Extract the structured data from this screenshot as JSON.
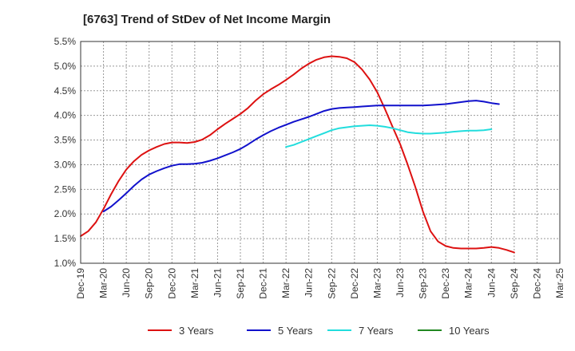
{
  "chart_data": {
    "type": "line",
    "title": "[6763]  Trend of StDev of Net Income Margin",
    "xlabel": "",
    "ylabel": "",
    "y_unit": "%",
    "ylim": [
      1.0,
      5.5
    ],
    "y_ticks": [
      "1.0%",
      "1.5%",
      "2.0%",
      "2.5%",
      "3.0%",
      "3.5%",
      "4.0%",
      "4.5%",
      "5.0%",
      "5.5%"
    ],
    "x_ticks": [
      "Dec-19",
      "Mar-20",
      "Jun-20",
      "Sep-20",
      "Dec-20",
      "Mar-21",
      "Jun-21",
      "Sep-21",
      "Dec-21",
      "Mar-22",
      "Jun-22",
      "Sep-22",
      "Dec-22",
      "Mar-23",
      "Jun-23",
      "Sep-23",
      "Dec-23",
      "Mar-24",
      "Jun-24",
      "Sep-24",
      "Dec-24",
      "Mar-25"
    ],
    "grid": true,
    "legend_position": "bottom",
    "series": [
      {
        "name": "3 Years",
        "color": "#dd1111",
        "start": "Dec-19",
        "values": [
          1.55,
          1.65,
          1.83,
          2.1,
          2.4,
          2.67,
          2.9,
          3.07,
          3.2,
          3.29,
          3.36,
          3.42,
          3.45,
          3.45,
          3.44,
          3.46,
          3.51,
          3.6,
          3.72,
          3.83,
          3.93,
          4.03,
          4.15,
          4.3,
          4.43,
          4.53,
          4.62,
          4.72,
          4.83,
          4.95,
          5.05,
          5.13,
          5.18,
          5.2,
          5.19,
          5.16,
          5.08,
          4.93,
          4.73,
          4.47,
          4.13,
          3.77,
          3.42,
          3.0,
          2.55,
          2.05,
          1.65,
          1.44,
          1.35,
          1.31,
          1.3,
          1.3,
          1.3,
          1.31,
          1.33,
          1.31,
          1.27,
          1.22
        ]
      },
      {
        "name": "5 Years",
        "color": "#1111cc",
        "start": "Mar-20",
        "values": [
          2.05,
          2.15,
          2.28,
          2.42,
          2.57,
          2.7,
          2.8,
          2.87,
          2.93,
          2.98,
          3.01,
          3.01,
          3.02,
          3.04,
          3.08,
          3.13,
          3.19,
          3.25,
          3.32,
          3.41,
          3.51,
          3.6,
          3.68,
          3.75,
          3.81,
          3.87,
          3.92,
          3.97,
          4.03,
          4.09,
          4.13,
          4.15,
          4.16,
          4.17,
          4.18,
          4.19,
          4.2,
          4.2,
          4.2,
          4.2,
          4.2,
          4.2,
          4.2,
          4.21,
          4.22,
          4.23,
          4.25,
          4.27,
          4.29,
          4.3,
          4.28,
          4.25,
          4.23
        ]
      },
      {
        "name": "7 Years",
        "color": "#22dddd",
        "start": "Mar-22",
        "values": [
          3.36,
          3.4,
          3.46,
          3.52,
          3.58,
          3.64,
          3.7,
          3.74,
          3.76,
          3.78,
          3.79,
          3.8,
          3.79,
          3.77,
          3.74,
          3.7,
          3.66,
          3.64,
          3.63,
          3.63,
          3.64,
          3.65,
          3.67,
          3.68,
          3.69,
          3.69,
          3.7,
          3.72
        ]
      },
      {
        "name": "10 Years",
        "color": "#228822",
        "start": "Dec-24",
        "values": []
      }
    ]
  }
}
